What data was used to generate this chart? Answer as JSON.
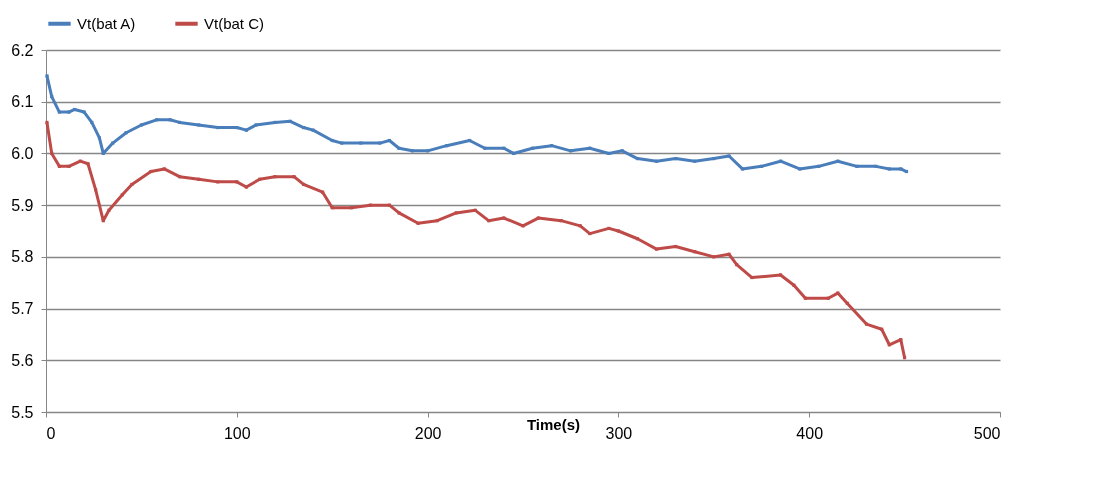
{
  "chart_data": {
    "type": "line",
    "xlabel": "Time(s)",
    "xlim": [
      0,
      500
    ],
    "xticks": [
      0,
      100,
      200,
      300,
      400,
      500
    ],
    "ylim": [
      5.5,
      6.2
    ],
    "yticks": [
      {
        "value": 5.5,
        "label": "5.5"
      },
      {
        "value": 5.6,
        "label": "5.6"
      },
      {
        "value": 5.7,
        "label": "5.7"
      },
      {
        "value": 5.8,
        "label": "5.8"
      },
      {
        "value": 5.9,
        "label": "5.9"
      },
      {
        "value": 6.0,
        "label": "6.0"
      },
      {
        "value": 6.1,
        "label": "6.1"
      },
      {
        "value": 6.2,
        "label": "6.2"
      }
    ],
    "grid": "y",
    "legend": "top",
    "marker": "square",
    "line_style": "solid",
    "series": [
      {
        "name": "Vt(bat A)",
        "color": "#4a7ebb",
        "x": [
          0.5,
          3,
          7,
          12,
          15,
          20,
          24,
          28,
          30,
          35,
          42,
          50,
          58,
          65,
          70,
          80,
          90,
          100,
          105,
          110,
          120,
          128,
          135,
          140,
          150,
          155,
          165,
          175,
          180,
          185,
          192,
          200,
          210,
          222,
          230,
          240,
          245,
          255,
          265,
          275,
          285,
          295,
          302,
          310,
          320,
          330,
          340,
          350,
          358,
          365,
          375,
          385,
          395,
          405,
          415,
          425,
          435,
          442,
          448,
          451
        ],
        "values": [
          6.15,
          6.11,
          6.08,
          6.08,
          6.085,
          6.08,
          6.06,
          6.03,
          6.0,
          6.02,
          6.04,
          6.055,
          6.065,
          6.065,
          6.06,
          6.055,
          6.05,
          6.05,
          6.045,
          6.055,
          6.06,
          6.062,
          6.05,
          6.045,
          6.025,
          6.02,
          6.02,
          6.02,
          6.025,
          6.01,
          6.005,
          6.005,
          6.015,
          6.025,
          6.01,
          6.01,
          6.0,
          6.01,
          6.015,
          6.005,
          6.01,
          6.0,
          6.005,
          5.99,
          5.985,
          5.99,
          5.985,
          5.99,
          5.995,
          5.97,
          5.975,
          5.985,
          5.97,
          5.975,
          5.985,
          5.975,
          5.975,
          5.97,
          5.97,
          5.965
        ]
      },
      {
        "name": "Vt(bat C)",
        "color": "#be4b48",
        "x": [
          0.5,
          3,
          7,
          12,
          18,
          22,
          26,
          30,
          33,
          40,
          45,
          55,
          62,
          70,
          80,
          90,
          100,
          105,
          112,
          120,
          130,
          135,
          145,
          150,
          160,
          170,
          180,
          185,
          195,
          205,
          215,
          225,
          232,
          240,
          250,
          258,
          270,
          280,
          285,
          295,
          300,
          310,
          320,
          330,
          340,
          350,
          358,
          362,
          370,
          385,
          392,
          398,
          410,
          415,
          420,
          430,
          438,
          442,
          448,
          450
        ],
        "values": [
          6.06,
          6.0,
          5.975,
          5.975,
          5.985,
          5.98,
          5.93,
          5.87,
          5.89,
          5.92,
          5.94,
          5.965,
          5.97,
          5.955,
          5.95,
          5.945,
          5.945,
          5.935,
          5.95,
          5.955,
          5.955,
          5.94,
          5.925,
          5.895,
          5.895,
          5.9,
          5.9,
          5.885,
          5.865,
          5.87,
          5.885,
          5.89,
          5.87,
          5.875,
          5.86,
          5.875,
          5.87,
          5.86,
          5.845,
          5.855,
          5.85,
          5.835,
          5.815,
          5.82,
          5.81,
          5.8,
          5.805,
          5.785,
          5.76,
          5.765,
          5.745,
          5.72,
          5.72,
          5.73,
          5.71,
          5.67,
          5.66,
          5.63,
          5.64,
          5.605
        ]
      }
    ]
  }
}
